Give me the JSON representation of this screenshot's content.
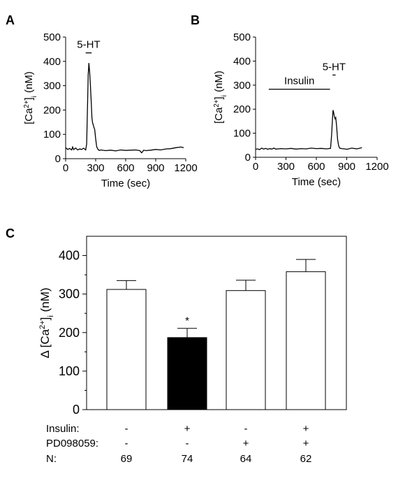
{
  "chart_data": [
    {
      "panel_label": "A",
      "type": "line",
      "xlabel": "Time (sec)",
      "ylabel_pre": "[Ca",
      "ylabel_sup": "2+",
      "ylabel_mid": "]",
      "ylabel_sub": "i",
      "ylabel_post": " (nM)",
      "xlim": [
        0,
        1200
      ],
      "ylim": [
        0,
        500
      ],
      "xticks": [
        0,
        300,
        600,
        900,
        1200
      ],
      "yticks": [
        0,
        100,
        200,
        300,
        400,
        500
      ],
      "annotations": [
        {
          "text": "5-HT",
          "bar_from": 200,
          "bar_to": 260,
          "bar_y": 435
        }
      ],
      "x": [
        0,
        20,
        40,
        60,
        70,
        80,
        100,
        120,
        140,
        160,
        180,
        200,
        210,
        220,
        225,
        232,
        240,
        248,
        256,
        262,
        268,
        275,
        282,
        290,
        300,
        310,
        320,
        335,
        350,
        400,
        450,
        500,
        550,
        600,
        650,
        700,
        740,
        760,
        780,
        800,
        850,
        900,
        950,
        1000,
        1050,
        1100,
        1150,
        1180
      ],
      "y": [
        45,
        38,
        42,
        36,
        48,
        37,
        44,
        36,
        40,
        38,
        43,
        36,
        60,
        240,
        345,
        393,
        355,
        300,
        230,
        170,
        150,
        140,
        130,
        120,
        82,
        50,
        40,
        34,
        36,
        33,
        35,
        32,
        36,
        34,
        35,
        36,
        33,
        24,
        35,
        33,
        35,
        38,
        36,
        40,
        41,
        45,
        48,
        45
      ]
    },
    {
      "panel_label": "B",
      "type": "line",
      "xlabel": "Time (sec)",
      "ylabel_pre": "[Ca",
      "ylabel_sup": "2+",
      "ylabel_mid": "]",
      "ylabel_sub": "i",
      "ylabel_post": " (nM)",
      "xlim": [
        0,
        1200
      ],
      "ylim": [
        0,
        500
      ],
      "xticks": [
        0,
        300,
        600,
        900,
        1200
      ],
      "yticks": [
        0,
        100,
        200,
        300,
        400,
        500
      ],
      "annotations": [
        {
          "text": "Insulin",
          "bar_from": 130,
          "bar_to": 735,
          "bar_y": 283
        },
        {
          "text": "5-HT",
          "bar_from": 760,
          "bar_to": 790,
          "bar_y": 342
        }
      ],
      "x": [
        0,
        20,
        40,
        60,
        80,
        100,
        120,
        140,
        160,
        180,
        200,
        250,
        300,
        350,
        400,
        450,
        500,
        550,
        600,
        650,
        700,
        740,
        750,
        760,
        765,
        770,
        778,
        785,
        792,
        800,
        810,
        820,
        830,
        850,
        880,
        900,
        950,
        1000,
        1050
      ],
      "y": [
        33,
        35,
        32,
        38,
        34,
        37,
        33,
        36,
        34,
        38,
        34,
        36,
        35,
        37,
        34,
        36,
        35,
        38,
        36,
        37,
        35,
        37,
        90,
        165,
        196,
        188,
        170,
        160,
        165,
        130,
        75,
        48,
        38,
        36,
        35,
        33,
        38,
        35,
        40
      ]
    },
    {
      "panel_label": "C",
      "type": "bar",
      "ylabel_pre": "Δ [Ca",
      "ylabel_sup": "2+",
      "ylabel_mid": "]",
      "ylabel_sub": "i",
      "ylabel_post": " (nM)",
      "ylim": [
        0,
        450
      ],
      "yticks": [
        0,
        100,
        200,
        300,
        400
      ],
      "row_labels": [
        "Insulin:",
        "PD098059:",
        "N:"
      ],
      "bars": [
        {
          "value": 312,
          "error": 23,
          "fill": "#ffffff",
          "insulin": "-",
          "pd": "-",
          "n": "69",
          "star": ""
        },
        {
          "value": 187,
          "error": 24,
          "fill": "#000000",
          "insulin": "+",
          "pd": "-",
          "n": "74",
          "star": "*"
        },
        {
          "value": 309,
          "error": 27,
          "fill": "#ffffff",
          "insulin": "-",
          "pd": "+",
          "n": "64",
          "star": ""
        },
        {
          "value": 358,
          "error": 32,
          "fill": "#ffffff",
          "insulin": "+",
          "pd": "+",
          "n": "62",
          "star": ""
        }
      ]
    }
  ]
}
